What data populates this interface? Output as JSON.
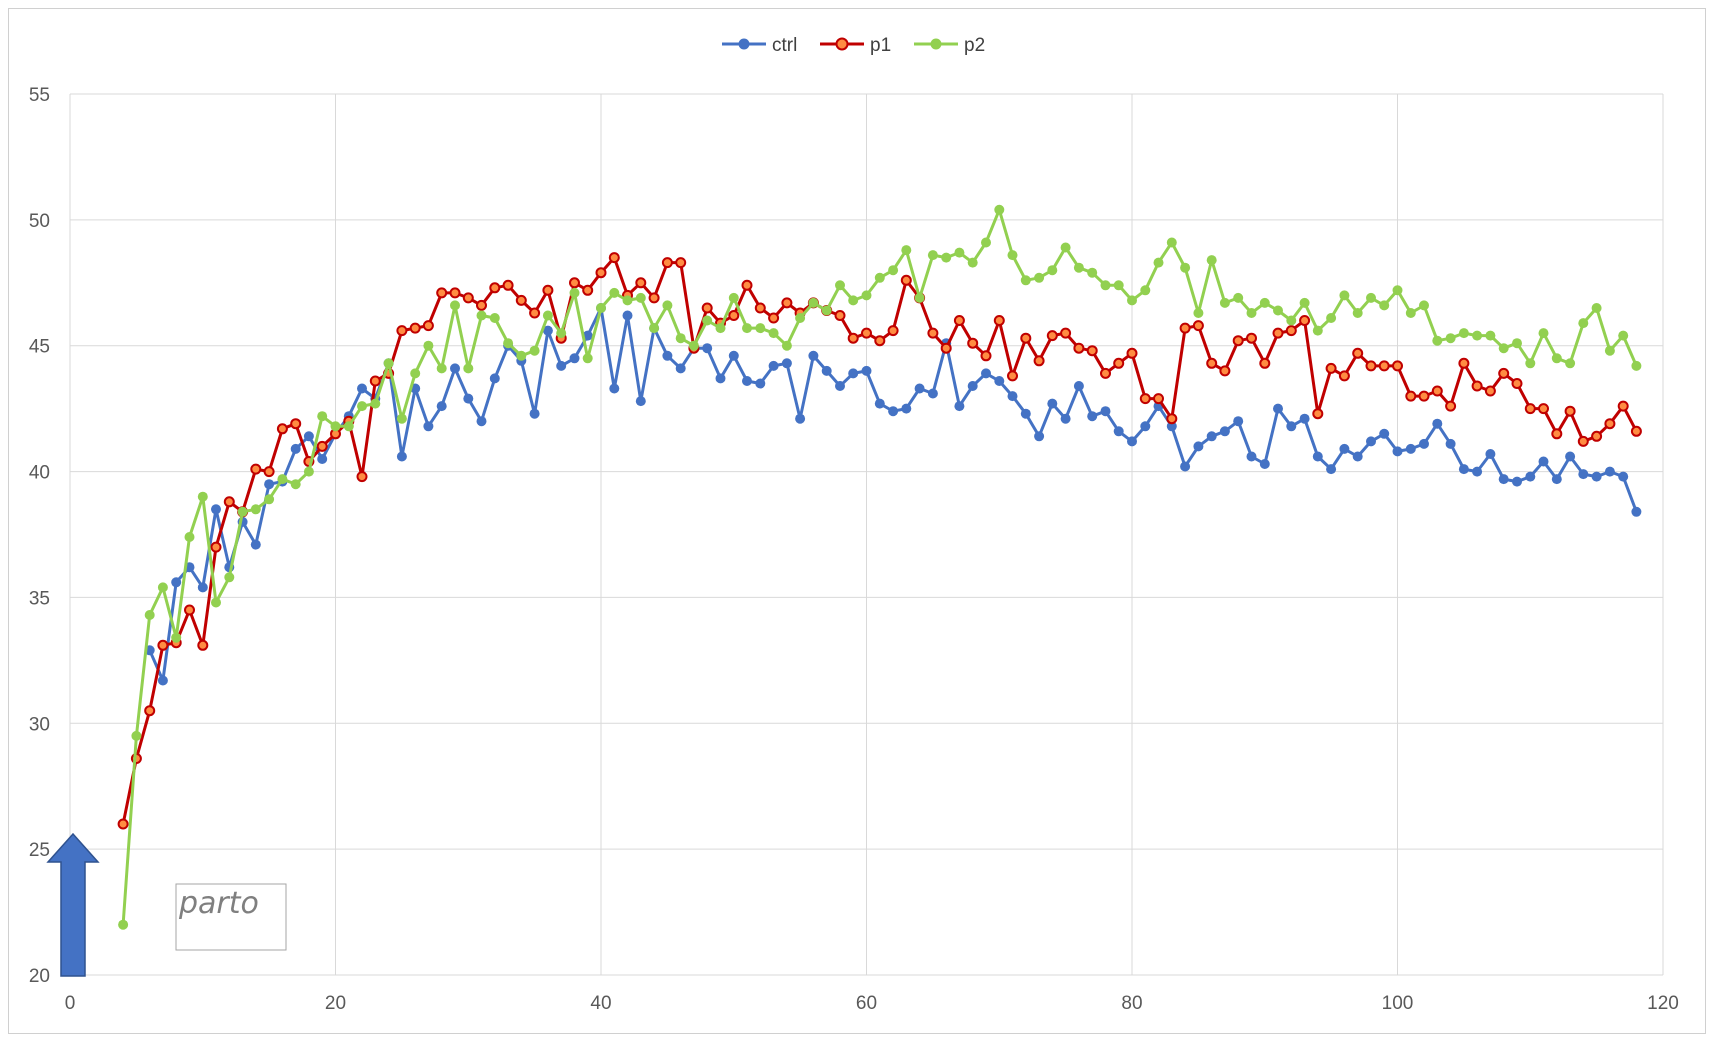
{
  "chart_data": {
    "type": "line",
    "title": "",
    "xlabel": "",
    "ylabel": "",
    "xlim": [
      0,
      120
    ],
    "ylim": [
      20,
      55
    ],
    "x_ticks": [
      0,
      20,
      40,
      60,
      80,
      100,
      120
    ],
    "y_ticks": [
      20,
      25,
      30,
      35,
      40,
      45,
      50,
      55
    ],
    "grid": true,
    "legend_position": "top-center",
    "annotation": {
      "text": "parto",
      "arrow": "up",
      "arrow_color": "#4472c4"
    },
    "series": [
      {
        "name": "ctrl",
        "color": "#4472c4",
        "x": [
          6,
          7,
          8,
          9,
          10,
          11,
          12,
          13,
          14,
          15,
          16,
          17,
          18,
          19,
          20,
          21,
          22,
          23,
          24,
          25,
          26,
          27,
          28,
          29,
          30,
          31,
          32,
          33,
          34,
          35,
          36,
          37,
          38,
          39,
          40,
          41,
          42,
          43,
          44,
          45,
          46,
          47,
          48,
          49,
          50,
          51,
          52,
          53,
          54,
          55,
          56,
          57,
          58,
          59,
          60,
          61,
          62,
          63,
          64,
          65,
          66,
          67,
          68,
          69,
          70,
          71,
          72,
          73,
          74,
          75,
          76,
          77,
          78,
          79,
          80,
          81,
          82,
          83,
          84,
          85,
          86,
          87,
          88,
          89,
          90,
          91,
          92,
          93,
          94,
          95,
          96,
          97,
          98,
          99,
          100,
          101,
          102,
          103,
          104,
          105,
          106,
          107,
          108,
          109,
          110,
          111,
          112,
          113,
          114,
          115,
          116,
          117,
          118
        ],
        "y": [
          32.9,
          31.7,
          35.6,
          36.2,
          35.4,
          38.5,
          36.2,
          38.0,
          37.1,
          39.5,
          39.6,
          40.9,
          41.4,
          40.5,
          41.5,
          42.2,
          43.3,
          42.9,
          44.3,
          40.6,
          43.3,
          41.8,
          42.6,
          44.1,
          42.9,
          42.0,
          43.7,
          45.0,
          44.4,
          42.3,
          45.6,
          44.2,
          44.5,
          45.4,
          46.5,
          43.3,
          46.2,
          42.8,
          45.7,
          44.6,
          44.1,
          44.9,
          44.9,
          43.7,
          44.6,
          43.6,
          43.5,
          44.2,
          44.3,
          42.1,
          44.6,
          44.0,
          43.4,
          43.9,
          44.0,
          42.7,
          42.4,
          42.5,
          43.3,
          43.1,
          45.1,
          42.6,
          43.4,
          43.9,
          43.6,
          43.0,
          42.3,
          41.4,
          42.7,
          42.1,
          43.4,
          42.2,
          42.4,
          41.6,
          41.2,
          41.8,
          42.6,
          41.8,
          40.2,
          41.0,
          41.4,
          41.6,
          42.0,
          40.6,
          40.3,
          42.5,
          41.8,
          42.1,
          40.6,
          40.1,
          40.9,
          40.6,
          41.2,
          41.5,
          40.8,
          40.9,
          41.1,
          41.9,
          41.1,
          40.1,
          40.0,
          40.7,
          39.7,
          39.6,
          39.8,
          40.4,
          39.7,
          40.6,
          39.9,
          39.8,
          40.0,
          39.8,
          38.4
        ]
      },
      {
        "name": "p1",
        "color": "#c00000",
        "x": [
          4,
          5,
          6,
          7,
          8,
          9,
          10,
          11,
          12,
          13,
          14,
          15,
          16,
          17,
          18,
          19,
          20,
          21,
          22,
          23,
          24,
          25,
          26,
          27,
          28,
          29,
          30,
          31,
          32,
          33,
          34,
          35,
          36,
          37,
          38,
          39,
          40,
          41,
          42,
          43,
          44,
          45,
          46,
          47,
          48,
          49,
          50,
          51,
          52,
          53,
          54,
          55,
          56,
          57,
          58,
          59,
          60,
          61,
          62,
          63,
          64,
          65,
          66,
          67,
          68,
          69,
          70,
          71,
          72,
          73,
          74,
          75,
          76,
          77,
          78,
          79,
          80,
          81,
          82,
          83,
          84,
          85,
          86,
          87,
          88,
          89,
          90,
          91,
          92,
          93,
          94,
          95,
          96,
          97,
          98,
          99,
          100,
          101,
          102,
          103,
          104,
          105,
          106,
          107,
          108,
          109,
          110,
          111,
          112,
          113,
          114,
          115,
          116,
          117,
          118
        ],
        "y": [
          26.0,
          28.6,
          30.5,
          33.1,
          33.2,
          34.5,
          33.1,
          37.0,
          38.8,
          38.4,
          40.1,
          40.0,
          41.7,
          41.9,
          40.4,
          41.0,
          41.5,
          42.0,
          39.8,
          43.6,
          43.9,
          45.6,
          45.7,
          45.8,
          47.1,
          47.1,
          46.9,
          46.6,
          47.3,
          47.4,
          46.8,
          46.3,
          47.2,
          45.3,
          47.5,
          47.2,
          47.9,
          48.5,
          47.0,
          47.5,
          46.9,
          48.3,
          48.3,
          44.9,
          46.5,
          45.9,
          46.2,
          47.4,
          46.5,
          46.1,
          46.7,
          46.3,
          46.7,
          46.4,
          46.2,
          45.3,
          45.5,
          45.2,
          45.6,
          47.6,
          46.9,
          45.5,
          44.9,
          46.0,
          45.1,
          44.6,
          46.0,
          43.8,
          45.3,
          44.4,
          45.4,
          45.5,
          44.9,
          44.8,
          43.9,
          44.3,
          44.7,
          42.9,
          42.9,
          42.1,
          45.7,
          45.8,
          44.3,
          44.0,
          45.2,
          45.3,
          44.3,
          45.5,
          45.6,
          46.0,
          42.3,
          44.1,
          43.8,
          44.7,
          44.2,
          44.2,
          44.2,
          43.0,
          43.0,
          43.2,
          42.6,
          44.3,
          43.4,
          43.2,
          43.9,
          43.5,
          42.5,
          42.5,
          41.5,
          42.4,
          41.2,
          41.4,
          41.9,
          42.6,
          41.6
        ]
      },
      {
        "name": "p2",
        "color": "#92d050",
        "x": [
          4,
          5,
          6,
          7,
          8,
          9,
          10,
          11,
          12,
          13,
          14,
          15,
          16,
          17,
          18,
          19,
          20,
          21,
          22,
          23,
          24,
          25,
          26,
          27,
          28,
          29,
          30,
          31,
          32,
          33,
          34,
          35,
          36,
          37,
          38,
          39,
          40,
          41,
          42,
          43,
          44,
          45,
          46,
          47,
          48,
          49,
          50,
          51,
          52,
          53,
          54,
          55,
          56,
          57,
          58,
          59,
          60,
          61,
          62,
          63,
          64,
          65,
          66,
          67,
          68,
          69,
          70,
          71,
          72,
          73,
          74,
          75,
          76,
          77,
          78,
          79,
          80,
          81,
          82,
          83,
          84,
          85,
          86,
          87,
          88,
          89,
          90,
          91,
          92,
          93,
          94,
          95,
          96,
          97,
          98,
          99,
          100,
          101,
          102,
          103,
          104,
          105,
          106,
          107,
          108,
          109,
          110,
          111,
          112,
          113,
          114,
          115,
          116,
          117,
          118
        ],
        "y": [
          22.0,
          29.5,
          34.3,
          35.4,
          33.4,
          37.4,
          39.0,
          34.8,
          35.8,
          38.4,
          38.5,
          38.9,
          39.7,
          39.5,
          40.0,
          42.2,
          41.8,
          41.8,
          42.6,
          42.7,
          44.3,
          42.1,
          43.9,
          45.0,
          44.1,
          46.6,
          44.1,
          46.2,
          46.1,
          45.1,
          44.6,
          44.8,
          46.2,
          45.5,
          47.1,
          44.5,
          46.5,
          47.1,
          46.8,
          46.9,
          45.7,
          46.6,
          45.3,
          45.0,
          46.0,
          45.7,
          46.9,
          45.7,
          45.7,
          45.5,
          45.0,
          46.1,
          46.7,
          46.4,
          47.4,
          46.8,
          47.0,
          47.7,
          48.0,
          48.8,
          46.9,
          48.6,
          48.5,
          48.7,
          48.3,
          49.1,
          50.4,
          48.6,
          47.6,
          47.7,
          48.0,
          48.9,
          48.1,
          47.9,
          47.4,
          47.4,
          46.8,
          47.2,
          48.3,
          49.1,
          48.1,
          46.3,
          48.4,
          46.7,
          46.9,
          46.3,
          46.7,
          46.4,
          46.0,
          46.7,
          45.6,
          46.1,
          47.0,
          46.3,
          46.9,
          46.6,
          47.2,
          46.3,
          46.6,
          45.2,
          45.3,
          45.5,
          45.4,
          45.4,
          44.9,
          45.1,
          44.3,
          45.5,
          44.5,
          44.3,
          45.9,
          46.5,
          44.8,
          45.4,
          44.2
        ]
      }
    ]
  }
}
